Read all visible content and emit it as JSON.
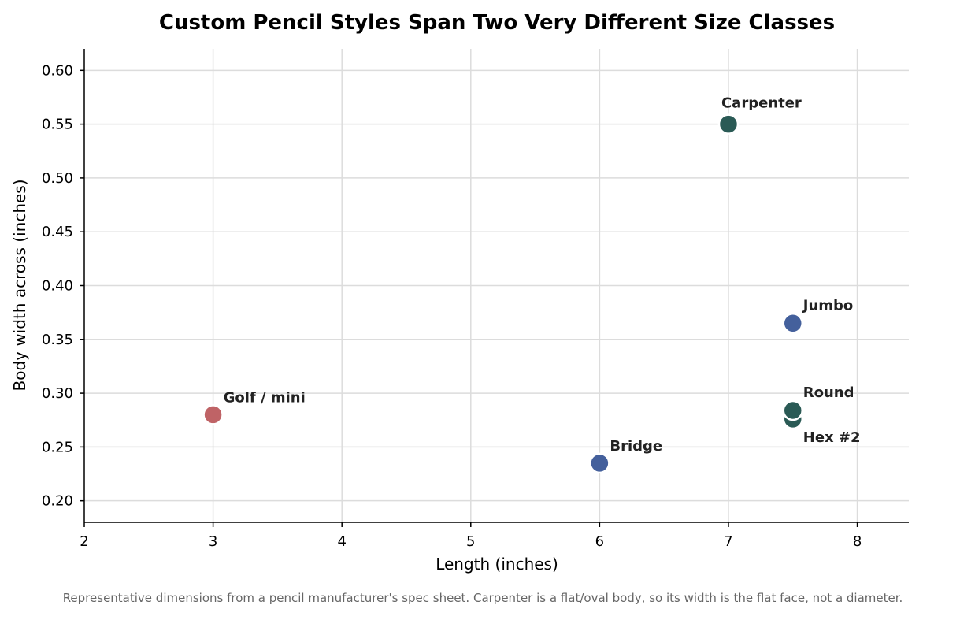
{
  "chart_data": {
    "type": "scatter",
    "title": "Custom Pencil Styles Span Two Very Different Size Classes",
    "xlabel": "Length (inches)",
    "ylabel": "Body width across (inches)",
    "xlim": [
      2,
      8.4
    ],
    "ylim": [
      0.18,
      0.62
    ],
    "xticks": [
      2,
      3,
      4,
      5,
      6,
      7,
      8
    ],
    "xtick_labels": [
      "2",
      "3",
      "4",
      "5",
      "6",
      "7",
      "8"
    ],
    "yticks": [
      0.2,
      0.25,
      0.3,
      0.35,
      0.4,
      0.45,
      0.5,
      0.55,
      0.6
    ],
    "ytick_labels": [
      "0.20",
      "0.25",
      "0.30",
      "0.35",
      "0.40",
      "0.45",
      "0.50",
      "0.55",
      "0.60"
    ],
    "grid": true,
    "points": [
      {
        "label": "Carpenter",
        "x": 7.0,
        "y": 0.55,
        "color": "#2a5a55"
      },
      {
        "label": "Jumbo",
        "x": 7.5,
        "y": 0.365,
        "color": "#44609c"
      },
      {
        "label": "Round",
        "x": 7.5,
        "y": 0.284,
        "color": "#2a5a55"
      },
      {
        "label": "Hex #2",
        "x": 7.5,
        "y": 0.276,
        "color": "#2a5a55"
      },
      {
        "label": "Golf / mini",
        "x": 3.0,
        "y": 0.28,
        "color": "#bf6366"
      },
      {
        "label": "Bridge",
        "x": 6.0,
        "y": 0.235,
        "color": "#44609c"
      }
    ],
    "footnote": "Representative dimensions from a pencil manufacturer's spec sheet. Carpenter is a flat/oval body, so its width is the flat face, not a diameter."
  }
}
